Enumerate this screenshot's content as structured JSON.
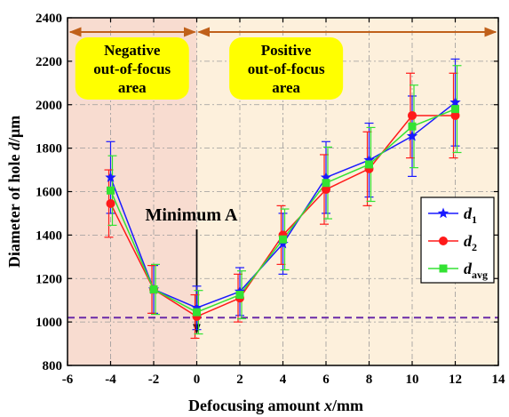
{
  "chart_data": {
    "type": "line",
    "xlabel": "Defocusing amount x/mm",
    "xlabel_parts": {
      "before": "Defocusing amount ",
      "italic": "x",
      "after": "/mm"
    },
    "ylabel": "Diameter of hole d/μm",
    "ylabel_parts": {
      "before": "Diameter of hole ",
      "italic": "d",
      "after": "/μm"
    },
    "xlim": [
      -6,
      14
    ],
    "ylim": [
      800,
      2400
    ],
    "x_ticks": [
      "-6",
      "-4",
      "-2",
      "0",
      "2",
      "4",
      "6",
      "8",
      "10",
      "12",
      "14"
    ],
    "y_ticks": [
      "800",
      "1000",
      "1200",
      "1400",
      "1600",
      "1800",
      "2000",
      "2200",
      "2400"
    ],
    "grid": true,
    "legend_position": "right",
    "x": [
      -4,
      -2,
      0,
      2,
      4,
      6,
      8,
      10,
      12
    ],
    "series": [
      {
        "name": "d1",
        "name_base": "d",
        "name_sub": "1",
        "color": "#1a1aff",
        "marker": "star",
        "values": [
          1665,
          1150,
          1065,
          1140,
          1360,
          1665,
          1745,
          1855,
          2010
        ],
        "err": [
          165,
          110,
          100,
          110,
          140,
          165,
          170,
          185,
          200
        ]
      },
      {
        "name": "d2",
        "name_base": "d",
        "name_sub": "2",
        "color": "#ff1a1a",
        "marker": "circle",
        "values": [
          1545,
          1150,
          1025,
          1110,
          1400,
          1610,
          1705,
          1950,
          1950
        ],
        "err": [
          155,
          110,
          100,
          110,
          135,
          160,
          170,
          195,
          195
        ]
      },
      {
        "name": "davg",
        "name_base": "d",
        "name_sub": "avg",
        "color": "#33e233",
        "marker": "square",
        "values": [
          1605,
          1150,
          1045,
          1125,
          1380,
          1640,
          1725,
          1900,
          1980
        ],
        "err": [
          160,
          115,
          100,
          110,
          140,
          165,
          170,
          190,
          200
        ]
      }
    ],
    "reference_line_y": 1020,
    "regions": [
      {
        "label_lines": [
          "Negative",
          "out-of-focus",
          "area"
        ],
        "x_from": -6,
        "x_to": 0,
        "color": "#f8dcd0"
      },
      {
        "label_lines": [
          "Positive",
          "out-of-focus",
          "area"
        ],
        "x_from": 0,
        "x_to": 14,
        "color": "#fdf0dc"
      }
    ],
    "annotation": {
      "text": "Minimum A",
      "x": 0,
      "y": 1065
    }
  }
}
